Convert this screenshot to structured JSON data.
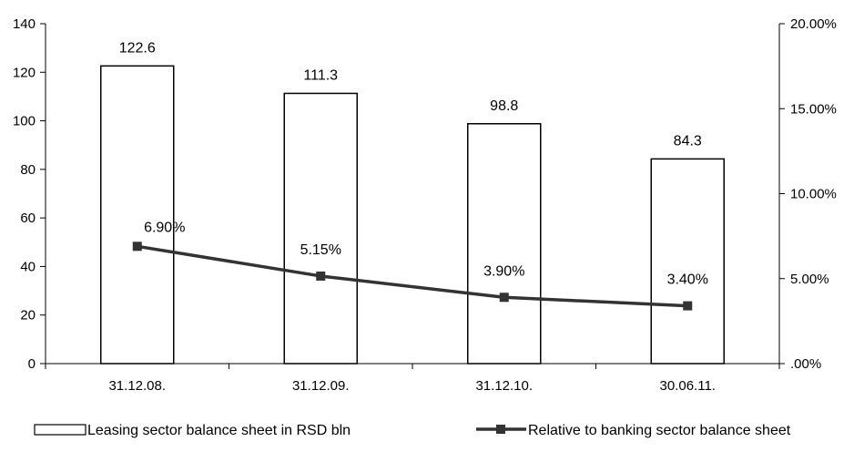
{
  "chart_data": {
    "type": "bar",
    "categories": [
      "31.12.08.",
      "31.12.09.",
      "31.12.10.",
      "30.06.11."
    ],
    "series": [
      {
        "name": "Leasing sector balance sheet in RSD bln",
        "kind": "bar",
        "axis": "left",
        "values": [
          122.6,
          111.3,
          98.8,
          84.3
        ],
        "labels": [
          "122.6",
          "111.3",
          "98.8",
          "84.3"
        ]
      },
      {
        "name": "Relative to banking sector balance sheet",
        "kind": "line",
        "axis": "right",
        "values": [
          6.9,
          5.15,
          3.9,
          3.4
        ],
        "labels": [
          "6.90%",
          "5.15%",
          "3.90%",
          "3.40%"
        ]
      }
    ],
    "y_left": {
      "min": 0,
      "max": 140,
      "ticks": [
        0,
        20,
        40,
        60,
        80,
        100,
        120,
        140
      ],
      "tick_labels": [
        "0",
        "20",
        "40",
        "60",
        "80",
        "100",
        "120",
        "140"
      ]
    },
    "y_right": {
      "min": 0,
      "max": 20,
      "ticks": [
        0,
        5,
        10,
        15,
        20
      ],
      "tick_labels": [
        ".00%",
        "5.00%",
        "10.00%",
        "15.00%",
        "20.00%"
      ]
    },
    "grid": false,
    "legend": "bottom",
    "colors": {
      "bar_fill": "#ffffff",
      "bar_stroke": "#000000",
      "line": "#333333",
      "marker": "#333333"
    }
  }
}
